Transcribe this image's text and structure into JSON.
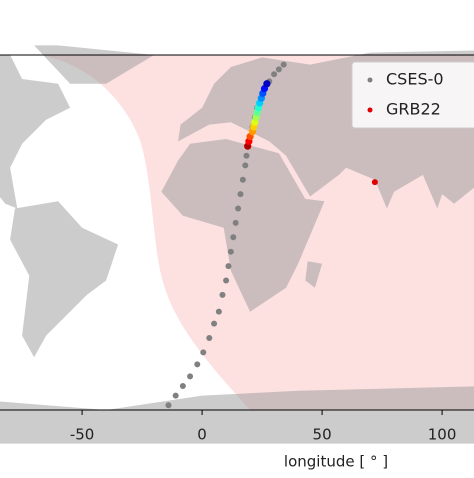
{
  "chart_data": {
    "type": "scatter",
    "xlabel": "longitude [ ° ]",
    "xlim": [
      -84.2,
      113.3
    ],
    "ylim": [
      -76,
      72
    ],
    "xticks": [
      -50,
      0,
      50,
      100
    ],
    "legend": "upper right",
    "series": [
      {
        "name": "CSES-0",
        "color": "#808080",
        "x": [
          -14,
          -11,
          -8,
          -5,
          -2,
          0.5,
          3,
          5,
          7,
          8.5,
          10,
          11,
          12,
          13,
          14,
          15,
          16,
          17,
          18,
          18.5,
          19,
          20,
          21,
          22,
          23,
          24.5,
          26,
          28,
          30,
          32,
          34
        ],
        "y": [
          -74,
          -70,
          -66,
          -62,
          -57,
          -52,
          -46,
          -40,
          -35,
          -28,
          -22,
          -16,
          -10,
          -4,
          2,
          8,
          14,
          20,
          26,
          30,
          34,
          38,
          42,
          46,
          50,
          54,
          58,
          61,
          64,
          66,
          68
        ]
      },
      {
        "colors": [
          "#b00000",
          "#ff0000",
          "#ff5000",
          "#ff9a00",
          "#ffd000",
          "#e0ff10",
          "#a0ff50",
          "#60ff90",
          "#20ffd0",
          "#00d0ff",
          "#0090ff",
          "#0050ff",
          "#0010ff",
          "#0000c0"
        ],
        "x": [
          19,
          19.5,
          20,
          21,
          21.5,
          22,
          22.5,
          23,
          23.5,
          24,
          24.7,
          25.3,
          26,
          27
        ],
        "y": [
          34,
          36,
          38,
          40,
          42,
          44,
          46,
          48,
          50,
          52,
          54,
          56,
          58,
          60
        ]
      },
      {
        "name": "GRB22",
        "color": "#e00000",
        "x": [
          72
        ],
        "y": [
          19
        ]
      }
    ]
  }
}
